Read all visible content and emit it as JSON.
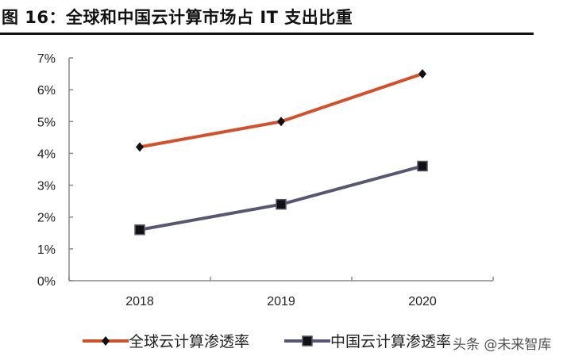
{
  "title": "图 16：全球和中国云计算市场占 IT 支出比重",
  "watermark": "头条 @未来智库",
  "chart_data": {
    "type": "line",
    "title": "图 16：全球和中国云计算市场占 IT 支出比重",
    "categories": [
      "2018",
      "2019",
      "2020"
    ],
    "ylim": [
      0,
      7
    ],
    "yticks": [
      "0%",
      "1%",
      "2%",
      "3%",
      "4%",
      "5%",
      "6%",
      "7%"
    ],
    "grid": false,
    "legend": "bottom",
    "series": [
      {
        "name": "全球云计算渗透率",
        "values": [
          4.2,
          5.0,
          6.5
        ],
        "color": "#d2502a",
        "marker": "diamond"
      },
      {
        "name": "中国云计算渗透率",
        "values": [
          1.6,
          2.4,
          3.6
        ],
        "color": "#575775",
        "marker": "square"
      }
    ]
  }
}
